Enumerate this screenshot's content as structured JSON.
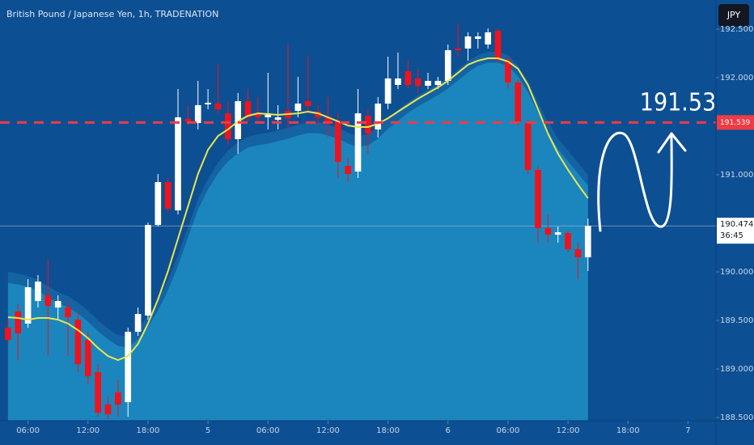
{
  "chart_data": {
    "type": "candlestick",
    "title": "British Pound / Japanese Yen, 1h, TRADENATION",
    "currency_button": "JPY",
    "x": [
      4,
      5,
      6,
      7,
      8,
      9,
      10,
      11,
      12,
      13,
      14,
      15,
      16,
      17,
      18,
      19,
      20,
      21,
      22,
      23,
      24,
      25,
      26,
      27,
      28,
      29,
      30,
      31,
      32,
      33,
      34,
      35,
      36,
      37,
      38,
      39,
      40,
      41,
      42,
      43,
      44,
      45,
      46,
      47,
      48,
      49,
      50,
      51,
      52,
      53,
      54,
      55,
      56,
      57,
      58,
      59,
      60,
      61,
      62
    ],
    "open": [
      189.425,
      189.592,
      189.467,
      189.7,
      189.758,
      189.633,
      189.633,
      189.508,
      189.3,
      188.967,
      188.633,
      188.758,
      188.658,
      189.383,
      189.55,
      190.483,
      190.925,
      190.633,
      191.575,
      191.533,
      191.725,
      191.733,
      191.633,
      191.367,
      191.758,
      191.633,
      191.592,
      191.567,
      191.658,
      191.658,
      191.758,
      191.65,
      191.592,
      191.55,
      191.092,
      191.033,
      191.608,
      191.467,
      191.733,
      191.925,
      192.067,
      191.992,
      191.917,
      191.925,
      191.967,
      192.3,
      192.3,
      192.4,
      192.342,
      192.483,
      192.183,
      191.95,
      191.533,
      191.05,
      190.45,
      190.383,
      190.4,
      190.233,
      190.15
    ],
    "high": [
      189.508,
      189.675,
      189.925,
      189.967,
      190.133,
      189.758,
      189.7,
      189.592,
      189.383,
      189.05,
      188.717,
      188.883,
      189.425,
      189.633,
      190.508,
      191.008,
      190.967,
      191.883,
      191.717,
      191.967,
      191.883,
      192.133,
      191.758,
      191.842,
      191.883,
      191.8,
      192.05,
      191.717,
      192.342,
      192.008,
      192.217,
      191.717,
      191.8,
      191.633,
      191.175,
      191.883,
      191.675,
      191.8,
      192.217,
      192.258,
      192.175,
      192.092,
      192.05,
      192.008,
      192.342,
      192.55,
      192.467,
      192.467,
      192.508,
      192.508,
      192.217,
      191.983,
      191.567,
      191.092,
      190.592,
      190.467,
      190.425,
      190.3,
      190.55
    ],
    "low": [
      189.258,
      189.092,
      189.425,
      189.633,
      189.133,
      189.508,
      189.133,
      188.967,
      188.842,
      188.508,
      188.483,
      188.508,
      188.508,
      189.342,
      189.508,
      190.467,
      190.617,
      190.592,
      191.508,
      191.467,
      191.675,
      191.633,
      191.3,
      191.217,
      191.55,
      191.55,
      191.467,
      191.467,
      191.467,
      191.592,
      191.633,
      191.508,
      191.383,
      190.967,
      190.925,
      190.967,
      191.217,
      191.383,
      191.675,
      191.883,
      191.883,
      191.842,
      191.883,
      191.883,
      191.925,
      192.217,
      192.175,
      192.3,
      192.3,
      192.15,
      191.883,
      191.508,
      191.008,
      190.3,
      190.3,
      190.3,
      190.2,
      189.925,
      190.008
    ],
    "close": [
      189.3,
      189.367,
      189.842,
      189.9,
      189.65,
      189.7,
      189.533,
      189.05,
      188.925,
      188.55,
      188.533,
      188.633,
      189.383,
      189.567,
      190.483,
      190.925,
      190.65,
      191.592,
      191.55,
      191.717,
      191.742,
      191.675,
      191.367,
      191.758,
      191.592,
      191.592,
      191.633,
      191.592,
      191.583,
      191.733,
      191.708,
      191.592,
      191.55,
      191.133,
      191.008,
      191.633,
      191.425,
      191.733,
      191.992,
      191.992,
      191.925,
      191.917,
      191.967,
      191.967,
      192.283,
      192.283,
      192.425,
      192.425,
      192.467,
      192.183,
      191.95,
      191.55,
      191.05,
      190.45,
      190.383,
      190.408,
      190.233,
      190.15,
      190.474
    ],
    "up_color": "#ffffff",
    "down_color": "#f0121d",
    "moving_average": {
      "color": "#e9e64f",
      "values": [
        189.533,
        189.525,
        189.508,
        189.525,
        189.525,
        189.508,
        189.467,
        189.4,
        189.317,
        189.217,
        189.133,
        189.092,
        189.133,
        189.258,
        189.467,
        189.717,
        190.008,
        190.342,
        190.675,
        191.008,
        191.258,
        191.4,
        191.467,
        191.55,
        191.608,
        191.633,
        191.625,
        191.617,
        191.625,
        191.633,
        191.65,
        191.633,
        191.592,
        191.55,
        191.508,
        191.492,
        191.492,
        191.525,
        191.583,
        191.65,
        191.717,
        191.783,
        191.842,
        191.9,
        191.967,
        192.05,
        192.133,
        192.175,
        192.2,
        192.2,
        192.167,
        192.092,
        191.925,
        191.675,
        191.425,
        191.217,
        191.05,
        190.9,
        190.758
      ]
    },
    "cloud": {
      "color": "#1a86bd",
      "values": [
        189.883,
        189.867,
        189.842,
        189.8,
        189.733,
        189.675,
        189.633,
        189.567,
        189.483,
        189.383,
        189.3,
        189.233,
        189.217,
        189.3,
        189.425,
        189.592,
        189.8,
        190.05,
        190.342,
        190.633,
        190.842,
        191.008,
        191.133,
        191.217,
        191.275,
        191.3,
        191.317,
        191.342,
        191.367,
        191.4,
        191.425,
        191.425,
        191.4,
        191.367,
        191.317,
        191.283,
        191.3,
        191.367,
        191.467,
        191.55,
        191.633,
        191.7,
        191.758,
        191.817,
        191.883,
        191.967,
        192.05,
        192.117,
        192.15,
        192.15,
        192.117,
        192.008,
        191.842,
        191.633,
        191.425,
        191.258,
        191.133,
        191.008,
        190.883
      ]
    },
    "resistance_line": {
      "value": 191.539,
      "color": "#ef3b45"
    },
    "current_price": 190.474,
    "countdown": "36:45",
    "annotation": "191.53",
    "xlim": [
      3.2,
      74.8
    ],
    "xticks": [
      {
        "value": 6,
        "label": "06:00"
      },
      {
        "value": 12,
        "label": "12:00"
      },
      {
        "value": 18,
        "label": "18:00"
      },
      {
        "value": 24,
        "label": "5"
      },
      {
        "value": 30,
        "label": "06:00"
      },
      {
        "value": 36,
        "label": "12:00"
      },
      {
        "value": 42,
        "label": "18:00"
      },
      {
        "value": 48,
        "label": "6"
      },
      {
        "value": 54,
        "label": "06:00"
      },
      {
        "value": 60,
        "label": "12:00"
      },
      {
        "value": 66,
        "label": "18:00"
      },
      {
        "value": 72,
        "label": "7"
      }
    ],
    "ylim": [
      188.467,
      192.8
    ],
    "yticks": [
      {
        "value": 192.5,
        "label": "192.500"
      },
      {
        "value": 192,
        "label": "192.000"
      },
      {
        "value": 191,
        "label": "191.000"
      },
      {
        "value": 190,
        "label": "190.000"
      },
      {
        "value": 189.5,
        "label": "189.500"
      },
      {
        "value": 189,
        "label": "189.000"
      },
      {
        "value": 188.5,
        "label": "188.500"
      }
    ]
  }
}
